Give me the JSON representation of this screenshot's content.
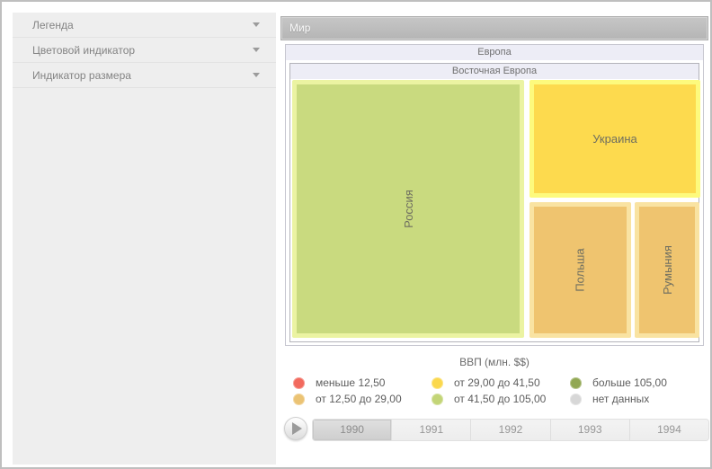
{
  "sidebar": {
    "items": [
      {
        "label": "Легенда"
      },
      {
        "label": "Цветовой индикатор"
      },
      {
        "label": "Индикатор размера"
      }
    ]
  },
  "treemap": {
    "root": {
      "label": "Мир"
    },
    "group_level1": {
      "label": "Европа"
    },
    "group_level2": {
      "label": "Восточная Европа"
    },
    "cells": [
      {
        "label": "Россия",
        "fill": "#c9da7f",
        "ring": "#ebf3a2",
        "orientation": "vertical"
      },
      {
        "label": "Украина",
        "fill": "#fdda4e",
        "ring": "#fdfa7d",
        "orientation": "horizontal"
      },
      {
        "label": "Польша",
        "fill": "#efc46f",
        "ring": "#f9e3a2",
        "orientation": "vertical"
      },
      {
        "label": "Румыния",
        "fill": "#efc46f",
        "ring": "#f9e3a2",
        "orientation": "vertical"
      }
    ]
  },
  "legend": {
    "title": "ВВП (млн. $$)",
    "items": [
      {
        "label": "меньше 12,50",
        "color": "#f26a5e"
      },
      {
        "label": "от 12,50 до 29,00",
        "color": "#ebc374"
      },
      {
        "label": "от 29,00 до 41,50",
        "color": "#fbd84d"
      },
      {
        "label": "от 41,50 до 105,00",
        "color": "#c3d577"
      },
      {
        "label": "больше 105,00",
        "color": "#92a854"
      },
      {
        "label": "нет данных",
        "color": "#d7d7d7"
      }
    ]
  },
  "timeline": {
    "years": [
      {
        "label": "1990",
        "selected": true
      },
      {
        "label": "1991",
        "selected": false
      },
      {
        "label": "1992",
        "selected": false
      },
      {
        "label": "1993",
        "selected": false
      },
      {
        "label": "1994",
        "selected": false
      }
    ]
  },
  "chart_data": {
    "type": "treemap",
    "title": "ВВП (млн. $$)",
    "hierarchy": [
      "Мир",
      "Европа",
      "Восточная Европа"
    ],
    "nodes": [
      {
        "name": "Россия",
        "color_bucket": "от 41,50 до 105,00",
        "relative_area": "large"
      },
      {
        "name": "Украина",
        "color_bucket": "от 29,00 до 41,50",
        "relative_area": "medium"
      },
      {
        "name": "Польша",
        "color_bucket": "от 12,50 до 29,00",
        "relative_area": "small"
      },
      {
        "name": "Румыния",
        "color_bucket": "от 12,50 до 29,00",
        "relative_area": "small"
      }
    ],
    "legend_position": "bottom",
    "time_axis": [
      "1990",
      "1991",
      "1992",
      "1993",
      "1994"
    ],
    "selected_year": "1990"
  }
}
